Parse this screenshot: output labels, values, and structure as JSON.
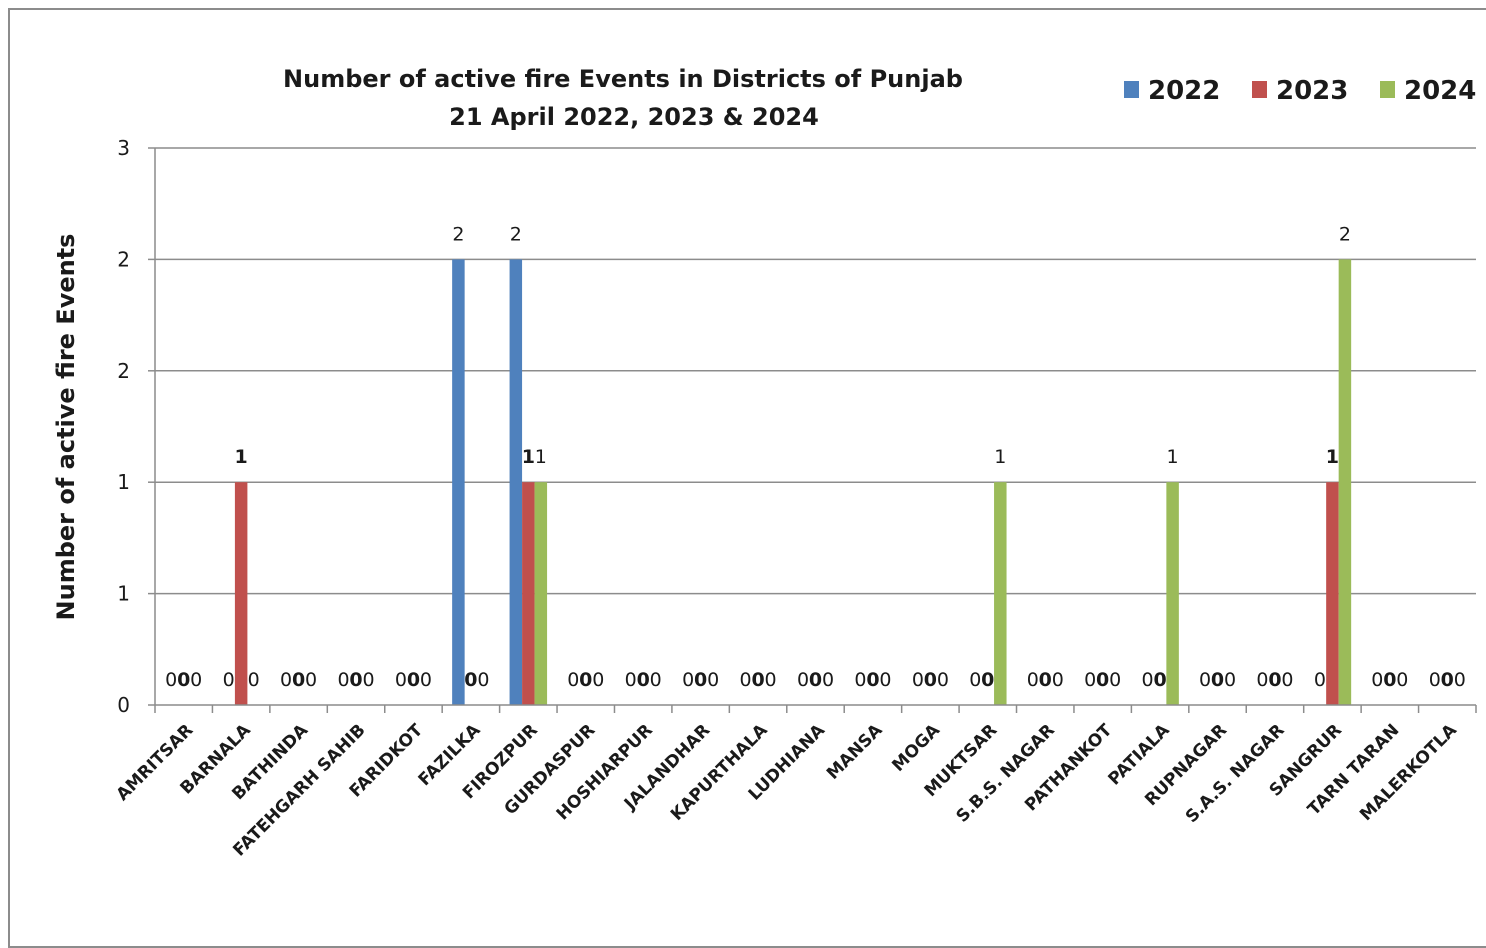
{
  "chart_data": {
    "type": "bar",
    "title": "Number of active fire Events in Districts of Punjab",
    "subtitle": "21 April 2022, 2023 & 2024",
    "xlabel": "",
    "ylabel": "Number of active fire Events",
    "ylim": [
      0,
      2.5
    ],
    "yticks": [
      {
        "value": 0,
        "label": "0"
      },
      {
        "value": 0.5,
        "label": "1"
      },
      {
        "value": 1,
        "label": "1"
      },
      {
        "value": 1.5,
        "label": "2"
      },
      {
        "value": 2,
        "label": "2"
      },
      {
        "value": 2.5,
        "label": "3"
      }
    ],
    "grid": true,
    "legend_position": "top-right",
    "categories": [
      "AMRITSAR",
      "BARNALA",
      "BATHINDA",
      "FATEHGARH SAHIB",
      "FARIDKOT",
      "FAZILKA",
      "FIROZPUR",
      "GURDASPUR",
      "HOSHIARPUR",
      "JALANDHAR",
      "KAPURTHALA",
      "LUDHIANA",
      "MANSA",
      "MOGA",
      "MUKTSAR",
      "S.B.S. NAGAR",
      "PATHANKOT",
      "PATIALA",
      "RUPNAGAR",
      "S.A.S. NAGAR",
      "SANGRUR",
      "TARN TARAN",
      "MALERKOTLA"
    ],
    "series": [
      {
        "name": "2022",
        "color": "#4f81bd",
        "label_bold": false,
        "values": [
          0,
          0,
          0,
          0,
          0,
          2,
          2,
          0,
          0,
          0,
          0,
          0,
          0,
          0,
          0,
          0,
          0,
          0,
          0,
          0,
          0,
          0,
          0
        ]
      },
      {
        "name": "2023",
        "color": "#c0504d",
        "label_bold": true,
        "values": [
          0,
          1,
          0,
          0,
          0,
          0,
          1,
          0,
          0,
          0,
          0,
          0,
          0,
          0,
          0,
          0,
          0,
          0,
          0,
          0,
          1,
          0,
          0
        ]
      },
      {
        "name": "2024",
        "color": "#9bbb59",
        "label_bold": false,
        "values": [
          0,
          0,
          0,
          0,
          0,
          0,
          1,
          0,
          0,
          0,
          0,
          0,
          0,
          0,
          1,
          0,
          0,
          1,
          0,
          0,
          2,
          0,
          0
        ]
      }
    ]
  }
}
